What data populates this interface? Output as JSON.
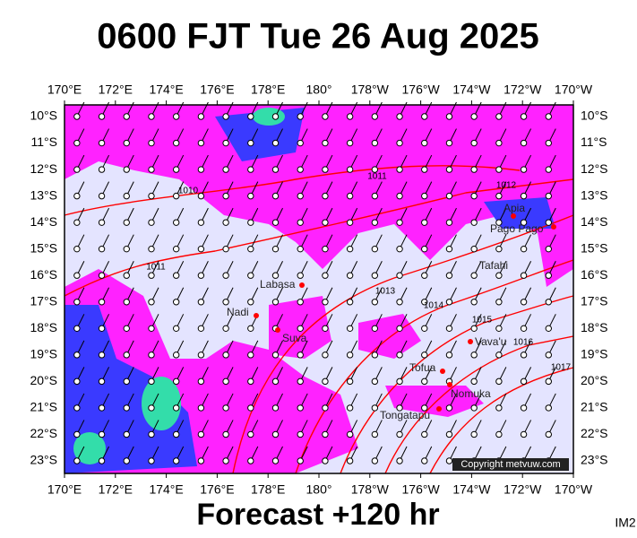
{
  "header": {
    "title": "0600 FJT Tue 26 Aug 2025"
  },
  "footer": {
    "text": "Forecast +120 hr",
    "corner": "IM2"
  },
  "copyright": "Copyright metvuw.com",
  "axes": {
    "lon": [
      "170°E",
      "172°E",
      "174°E",
      "176°E",
      "178°E",
      "180°",
      "178°W",
      "176°W",
      "174°W",
      "172°W",
      "170°W"
    ],
    "lat": [
      "10°S",
      "11°S",
      "12°S",
      "13°S",
      "14°S",
      "15°S",
      "16°S",
      "17°S",
      "18°S",
      "19°S",
      "20°S",
      "21°S",
      "22°S",
      "23°S"
    ]
  },
  "places": [
    "Apia",
    "Pago Pago",
    "Tafahi",
    "Labasa",
    "Nadi",
    "Suva",
    "Vava'u",
    "Tofua",
    "Nomuka",
    "Tongatapu"
  ],
  "isobars": [
    "1010",
    "1011",
    "1011",
    "1012",
    "1013",
    "1014",
    "1015",
    "1016",
    "1017"
  ]
}
